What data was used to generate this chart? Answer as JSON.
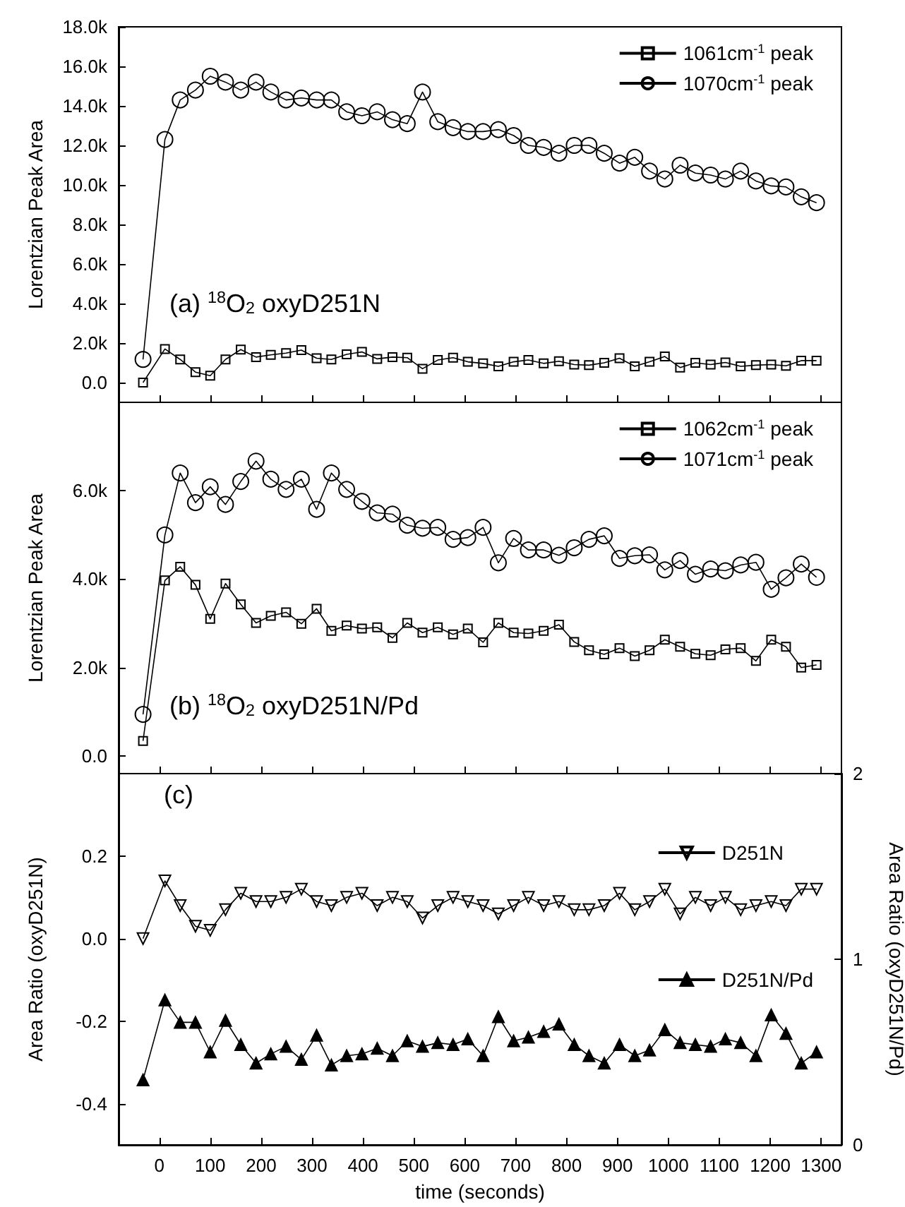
{
  "chart_data": [
    {
      "type": "line",
      "ylabel": "Lorentzian Peak Area",
      "annotations": [
        "(a) $^{18}$O$_{2}$ oxyD251N"
      ],
      "legend": "top right",
      "tick_labels": "y",
      "x": [
        -32,
        11,
        41,
        71,
        100,
        130,
        160,
        190,
        219,
        249,
        279,
        309,
        338,
        368,
        398,
        428,
        458,
        487,
        517,
        547,
        577,
        606,
        636,
        666,
        696,
        725,
        755,
        785,
        815,
        844,
        874,
        904,
        934,
        963,
        993,
        1023,
        1053,
        1083,
        1112,
        1142,
        1172,
        1202,
        1231,
        1261,
        1291
      ],
      "xlim": [
        -80,
        1340
      ],
      "xticks": [
        0,
        100,
        200,
        300,
        400,
        500,
        600,
        700,
        800,
        900,
        1000,
        1100,
        1200,
        1300
      ],
      "ylim": [
        -1000,
        18000
      ],
      "yticks": [
        {
          "value": 0,
          "label": "0.0"
        },
        {
          "value": 2000,
          "label": "2.0k"
        },
        {
          "value": 4000,
          "label": "4.0k"
        },
        {
          "value": 6000,
          "label": "6.0k"
        },
        {
          "value": 8000,
          "label": "8.0k"
        },
        {
          "value": 10000,
          "label": "10.0k"
        },
        {
          "value": 12000,
          "label": "12.0k"
        },
        {
          "value": 14000,
          "label": "14.0k"
        },
        {
          "value": 16000,
          "label": "16.0k"
        },
        {
          "value": 18000,
          "label": "18.0k"
        }
      ],
      "series": [
        {
          "name": "1061cm$^{-1}$ peak",
          "color": "#000000",
          "marker": "square",
          "values": [
            0,
            1700,
            1170,
            530,
            350,
            1170,
            1670,
            1290,
            1400,
            1490,
            1640,
            1230,
            1170,
            1430,
            1550,
            1200,
            1290,
            1260,
            700,
            1140,
            1260,
            1050,
            970,
            820,
            1050,
            1140,
            970,
            1080,
            910,
            880,
            1000,
            1230,
            820,
            1050,
            1320,
            760,
            1000,
            910,
            1020,
            820,
            880,
            910,
            850,
            1110,
            1110
          ]
        },
        {
          "name": "1070cm$^{-1}$ peak",
          "color": "#000000",
          "marker": "circle",
          "values": [
            1170,
            12300,
            14300,
            14800,
            15500,
            15200,
            14800,
            15200,
            14700,
            14300,
            14400,
            14300,
            14300,
            13700,
            13500,
            13700,
            13300,
            13100,
            14700,
            13200,
            12900,
            12700,
            12700,
            12800,
            12500,
            12000,
            11900,
            11600,
            12000,
            12000,
            11600,
            11100,
            11400,
            10700,
            10300,
            11000,
            10600,
            10500,
            10300,
            10700,
            10200,
            9950,
            9900,
            9400,
            9100
          ]
        }
      ]
    },
    {
      "type": "line",
      "ylabel": "Lorentzian Peak Area",
      "annotations": [
        "(b) $^{18}$O$_{2}$ oxyD251N/Pd"
      ],
      "legend": "top right",
      "tick_labels": "y",
      "x": [
        -32,
        11,
        41,
        71,
        100,
        130,
        160,
        190,
        219,
        249,
        279,
        309,
        338,
        368,
        398,
        428,
        458,
        487,
        517,
        547,
        577,
        606,
        636,
        666,
        696,
        725,
        755,
        785,
        815,
        844,
        874,
        904,
        934,
        963,
        993,
        1023,
        1053,
        1083,
        1112,
        1142,
        1172,
        1202,
        1231,
        1261,
        1291
      ],
      "xlim": [
        -80,
        1340
      ],
      "xticks": [
        0,
        100,
        200,
        300,
        400,
        500,
        600,
        700,
        800,
        900,
        1000,
        1100,
        1200,
        1300
      ],
      "ylim": [
        -400,
        8000
      ],
      "yticks": [
        {
          "value": 0,
          "label": "0.0"
        },
        {
          "value": 2000,
          "label": "2.0k"
        },
        {
          "value": 4000,
          "label": "4.0k"
        },
        {
          "value": 6000,
          "label": "6.0k"
        }
      ],
      "series": [
        {
          "name": "1062cm$^{-1}$ peak",
          "color": "#000000",
          "marker": "square",
          "values": [
            340,
            3970,
            4280,
            3870,
            3100,
            3900,
            3430,
            3010,
            3170,
            3250,
            2990,
            3330,
            2830,
            2950,
            2880,
            2910,
            2670,
            3010,
            2790,
            2910,
            2750,
            2880,
            2570,
            3010,
            2790,
            2770,
            2830,
            2970,
            2580,
            2390,
            2300,
            2440,
            2260,
            2390,
            2630,
            2470,
            2310,
            2280,
            2410,
            2440,
            2150,
            2630,
            2470,
            2000,
            2060
          ]
        },
        {
          "name": "1071cm$^{-1}$ peak",
          "color": "#000000",
          "marker": "circle",
          "values": [
            940,
            5000,
            6400,
            5730,
            6090,
            5690,
            6210,
            6670,
            6260,
            6030,
            6260,
            5580,
            6400,
            6030,
            5760,
            5500,
            5470,
            5220,
            5150,
            5170,
            4900,
            4940,
            5170,
            4370,
            4920,
            4660,
            4660,
            4540,
            4710,
            4900,
            4980,
            4470,
            4530,
            4550,
            4210,
            4420,
            4110,
            4230,
            4190,
            4320,
            4380,
            3770,
            4030,
            4340,
            4040
          ]
        }
      ]
    },
    {
      "type": "line",
      "ylabel": "Area Ratio (oxyD251N)",
      "y2label": "Area Ratio (oxyD251N/Pd)",
      "xlabel": "time (seconds)",
      "annotations": [
        "(c)"
      ],
      "legend": "right",
      "x": [
        -32,
        11,
        41,
        71,
        100,
        130,
        160,
        190,
        219,
        249,
        279,
        309,
        338,
        368,
        398,
        428,
        458,
        487,
        517,
        547,
        577,
        606,
        636,
        666,
        696,
        725,
        755,
        785,
        815,
        844,
        874,
        904,
        934,
        963,
        993,
        1023,
        1053,
        1083,
        1112,
        1142,
        1172,
        1202,
        1231,
        1261,
        1291
      ],
      "xlim": [
        -80,
        1340
      ],
      "xticks": [
        0,
        100,
        200,
        300,
        400,
        500,
        600,
        700,
        800,
        900,
        1000,
        1100,
        1200,
        1300
      ],
      "ylim": [
        -0.5,
        0.4
      ],
      "yticks": [
        -0.4,
        -0.2,
        {
          "value": 0,
          "label": "0.0"
        },
        0.2
      ],
      "y2lim": [
        0,
        2
      ],
      "y2ticks": [
        0,
        1,
        2
      ],
      "series": [
        {
          "name": "D251N",
          "color": "#000000",
          "marker": "triangle",
          "values": [
            0.0,
            0.14,
            0.08,
            0.03,
            0.02,
            0.07,
            0.11,
            0.09,
            0.09,
            0.1,
            0.12,
            0.09,
            0.08,
            0.1,
            0.11,
            0.08,
            0.1,
            0.09,
            0.05,
            0.08,
            0.1,
            0.09,
            0.08,
            0.06,
            0.08,
            0.1,
            0.08,
            0.09,
            0.07,
            0.07,
            0.08,
            0.11,
            0.07,
            0.09,
            0.12,
            0.06,
            0.1,
            0.08,
            0.1,
            0.07,
            0.08,
            0.09,
            0.08,
            0.12,
            0.12
          ]
        },
        {
          "name": "D251N/Pd",
          "color": "#000000",
          "marker": "triangle",
          "axis": "y2",
          "values": [
            0.35,
            0.78,
            0.66,
            0.66,
            0.5,
            0.67,
            0.54,
            0.44,
            0.49,
            0.53,
            0.46,
            0.59,
            0.43,
            0.48,
            0.49,
            0.52,
            0.48,
            0.56,
            0.53,
            0.55,
            0.54,
            0.57,
            0.48,
            0.69,
            0.56,
            0.58,
            0.61,
            0.65,
            0.54,
            0.48,
            0.44,
            0.54,
            0.48,
            0.51,
            0.62,
            0.55,
            0.54,
            0.53,
            0.57,
            0.55,
            0.48,
            0.7,
            0.6,
            0.44,
            0.5
          ]
        }
      ]
    }
  ]
}
